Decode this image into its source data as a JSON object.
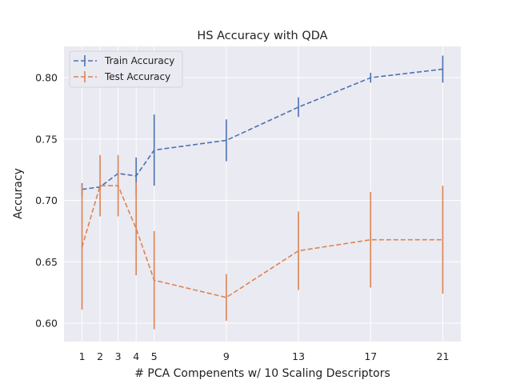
{
  "chart_data": {
    "type": "line",
    "title": "HS Accuracy with QDA",
    "xlabel": "# PCA Compenents w/ 10 Scaling Descriptors",
    "ylabel": "Accuracy",
    "x": [
      1,
      2,
      3,
      4,
      5,
      9,
      13,
      17,
      21
    ],
    "xticks": [
      "1",
      "2",
      "3",
      "4",
      "5",
      "9",
      "13",
      "17",
      "21"
    ],
    "xlim": [
      0,
      22
    ],
    "yticks": [
      "0.60",
      "0.65",
      "0.70",
      "0.75",
      "0.80"
    ],
    "ylim": [
      0.585,
      0.8255
    ],
    "grid": true,
    "legend_position": "top-left",
    "series": [
      {
        "name": "Train Accuracy",
        "color": "#4c72b0",
        "values": [
          0.709,
          0.711,
          0.722,
          0.72,
          0.741,
          0.749,
          0.776,
          0.8,
          0.807
        ],
        "errors": [
          0.005,
          0.002,
          0.002,
          0.015,
          0.029,
          0.017,
          0.008,
          0.004,
          0.011
        ]
      },
      {
        "name": "Test Accuracy",
        "color": "#dd8452",
        "values": [
          0.662,
          0.712,
          0.712,
          0.677,
          0.635,
          0.621,
          0.659,
          0.668,
          0.668
        ],
        "errors": [
          0.051,
          0.025,
          0.025,
          0.038,
          0.04,
          0.019,
          0.032,
          0.039,
          0.044
        ]
      }
    ]
  }
}
